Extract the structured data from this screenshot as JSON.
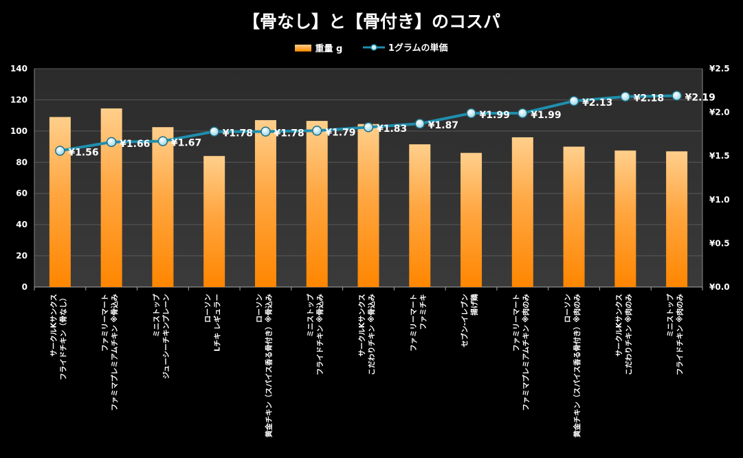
{
  "chart_data": {
    "type": "bar",
    "title": "【骨なし】と【骨付き】のコスパ",
    "categories": [
      [
        "サークルKサンクス",
        "フライドチキン（骨なし）"
      ],
      [
        "ファミリーマート",
        "ファミマプレミアムチキン ※骨込み"
      ],
      [
        "ミニストップ",
        "ジューシーチキンプレーン"
      ],
      [
        "ローソン",
        "Lチキ レギュラー"
      ],
      [
        "ローソン",
        "黄金チキン（スパイス香る骨付き）※骨込み"
      ],
      [
        "ミニストップ",
        "フライドチキン ※骨込み"
      ],
      [
        "サークルKサンクス",
        "こだわりチキン ※骨込み"
      ],
      [
        "ファミリーマート",
        "ファミチキ"
      ],
      [
        "セブン-イレブン",
        "揚げ鶏"
      ],
      [
        "ファミリーマート",
        "ファミマプレミアムチキン ※肉のみ"
      ],
      [
        "ローソン",
        "黄金チキン（スパイス香る骨付き）※肉のみ"
      ],
      [
        "サークルKサンクス",
        "こだわりチキン ※肉のみ"
      ],
      [
        "ミニストップ",
        "フライドチキン ※肉のみ"
      ]
    ],
    "series": [
      {
        "name": "重量 g",
        "type": "bar",
        "axis": "left",
        "color": "#ff8a00",
        "values": [
          109,
          114.5,
          102.5,
          84,
          107,
          106.5,
          104.5,
          91.5,
          86,
          96,
          90,
          87.5,
          87
        ]
      },
      {
        "name": "1グラムの単価",
        "type": "line",
        "axis": "right",
        "color": "#1f8fae",
        "values": [
          1.56,
          1.66,
          1.67,
          1.78,
          1.78,
          1.79,
          1.83,
          1.87,
          1.99,
          1.99,
          2.13,
          2.18,
          2.19
        ],
        "labels": [
          "¥1.56",
          "¥1.66",
          "¥1.67",
          "¥1.78",
          "¥1.78",
          "¥1.79",
          "¥1.83",
          "¥1.87",
          "¥1.99",
          "¥1.99",
          "¥2.13",
          "¥2.18",
          "¥2.19"
        ]
      }
    ],
    "y_left": {
      "min": 0,
      "max": 140,
      "step": 20,
      "ticks": [
        "0",
        "20",
        "40",
        "60",
        "80",
        "100",
        "120",
        "140"
      ]
    },
    "y_right": {
      "min": 0,
      "max": 2.5,
      "step": 0.5,
      "ticks": [
        "¥0.0",
        "¥0.5",
        "¥1.0",
        "¥1.5",
        "¥2.0",
        "¥2.5"
      ]
    },
    "legend_position": "top-center",
    "grid": true
  }
}
